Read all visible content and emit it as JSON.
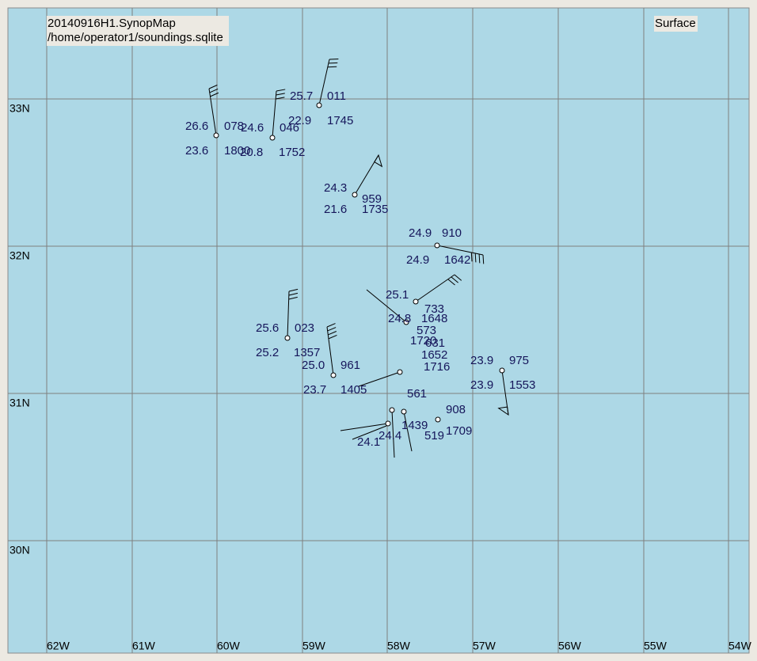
{
  "header": {
    "title": "20140916H1.SynopMap",
    "source": "/home/operator1/soundings.sqlite",
    "level": "Surface"
  },
  "axes": {
    "latitudes": [
      "33N",
      "32N",
      "31N",
      "30N"
    ],
    "longitudes": [
      "62W",
      "61W",
      "60W",
      "59W",
      "58W",
      "57W",
      "56W",
      "55W",
      "54W"
    ]
  },
  "stations": [
    {
      "temperature": "25.7",
      "dewpoint": "22.9",
      "id": "011",
      "time": "1745"
    },
    {
      "temperature": "26.6",
      "dewpoint": "23.6",
      "id": "078",
      "time": "1800"
    },
    {
      "temperature": "24.6",
      "dewpoint": "20.8",
      "id": "046",
      "time": "1752"
    },
    {
      "temperature": "24.3",
      "dewpoint": "21.6",
      "id": "959",
      "time": "1735"
    },
    {
      "temperature": "24.9",
      "dewpoint": "24.9",
      "id": "910",
      "time": "1642"
    },
    {
      "temperature": "25.1"
    },
    {
      "temperature": "25.6",
      "dewpoint": "25.2",
      "id": "023",
      "time": "1357"
    },
    {
      "temperature": "25.0",
      "dewpoint": "23.7",
      "id": "961",
      "time": "1405"
    },
    {
      "temperature": "23.9",
      "dewpoint": "23.9",
      "id": "975",
      "time": "1553"
    }
  ],
  "cluster_labels": [
    "733",
    "24.8",
    "1648",
    "573",
    "1720",
    "631",
    "1652",
    "1716",
    "561",
    "908",
    "1709",
    "24.4",
    "519",
    "1439",
    "24.1"
  ]
}
